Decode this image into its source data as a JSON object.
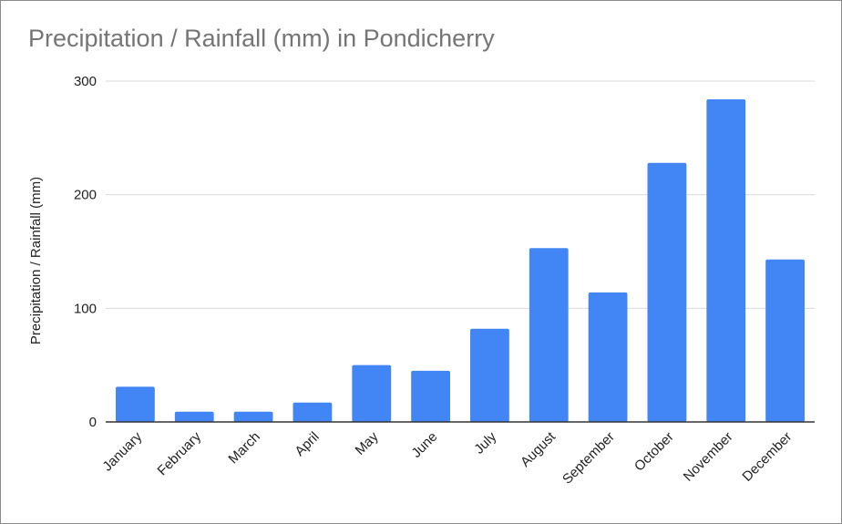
{
  "chart_data": {
    "type": "bar",
    "title": "Precipitation / Rainfall (mm) in Pondicherry",
    "xlabel": "",
    "ylabel": "Precipitation / Rainfall (mm)",
    "ylim": [
      0,
      300
    ],
    "yticks": [
      0,
      100,
      200,
      300
    ],
    "categories": [
      "January",
      "February",
      "March",
      "April",
      "May",
      "June",
      "July",
      "August",
      "September",
      "October",
      "November",
      "December"
    ],
    "values": [
      31,
      9,
      9,
      17,
      50,
      45,
      82,
      153,
      114,
      228,
      284,
      143
    ],
    "bar_color": "#4285f4",
    "grid": true,
    "legend": "none"
  }
}
